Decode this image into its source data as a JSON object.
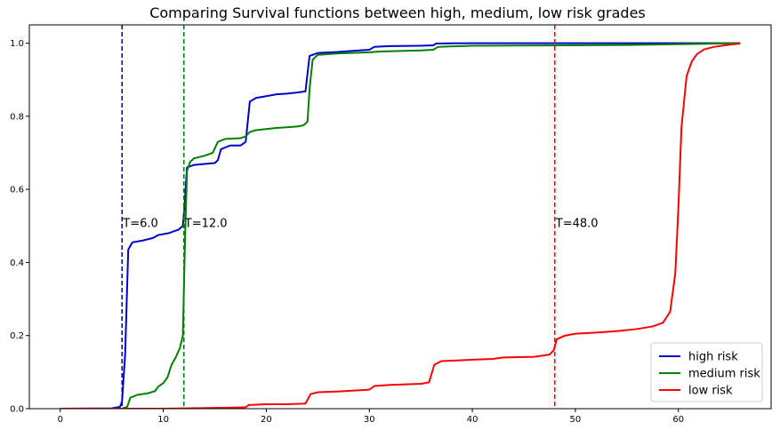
{
  "chart_data": {
    "type": "line",
    "title": "Comparing Survival functions between high, medium, low risk grades",
    "xlabel": "",
    "ylabel": "",
    "xlim": [
      -3,
      69
    ],
    "ylim": [
      0,
      1.05
    ],
    "xticks": [
      0,
      10,
      20,
      30,
      40,
      50,
      60
    ],
    "yticks": [
      0.0,
      0.2,
      0.4,
      0.6,
      0.8,
      1.0
    ],
    "grid": false,
    "legend_position": "lower-right",
    "series": [
      {
        "name": "high risk",
        "color": "#0000cc",
        "points": [
          [
            0,
            0
          ],
          [
            5,
            0.001
          ],
          [
            5.8,
            0.005
          ],
          [
            6.0,
            0.02
          ],
          [
            6.3,
            0.15
          ],
          [
            6.6,
            0.435
          ],
          [
            7,
            0.455
          ],
          [
            8,
            0.46
          ],
          [
            9,
            0.467
          ],
          [
            9.5,
            0.475
          ],
          [
            10.5,
            0.48
          ],
          [
            11,
            0.485
          ],
          [
            11.5,
            0.49
          ],
          [
            11.9,
            0.5
          ],
          [
            12.05,
            0.55
          ],
          [
            12.3,
            0.66
          ],
          [
            13,
            0.667
          ],
          [
            15,
            0.672
          ],
          [
            15.3,
            0.68
          ],
          [
            15.6,
            0.71
          ],
          [
            16.5,
            0.72
          ],
          [
            17.5,
            0.72
          ],
          [
            18,
            0.73
          ],
          [
            18.4,
            0.84
          ],
          [
            19,
            0.85
          ],
          [
            20,
            0.855
          ],
          [
            21,
            0.86
          ],
          [
            22,
            0.862
          ],
          [
            23,
            0.865
          ],
          [
            23.8,
            0.868
          ],
          [
            24.2,
            0.965
          ],
          [
            25,
            0.973
          ],
          [
            27,
            0.976
          ],
          [
            29,
            0.98
          ],
          [
            30,
            0.982
          ],
          [
            30.5,
            0.99
          ],
          [
            32,
            0.992
          ],
          [
            35,
            0.993
          ],
          [
            36.2,
            0.994
          ],
          [
            36.5,
            0.999
          ],
          [
            40,
            1.0
          ],
          [
            60,
            1.0
          ],
          [
            66,
            1.0
          ]
        ]
      },
      {
        "name": "medium risk",
        "color": "#008000",
        "points": [
          [
            0,
            0
          ],
          [
            6,
            0.0
          ],
          [
            6.5,
            0.005
          ],
          [
            6.8,
            0.03
          ],
          [
            7.5,
            0.038
          ],
          [
            8.5,
            0.042
          ],
          [
            9.2,
            0.048
          ],
          [
            9.5,
            0.06
          ],
          [
            10,
            0.07
          ],
          [
            10.4,
            0.085
          ],
          [
            10.8,
            0.12
          ],
          [
            11.2,
            0.14
          ],
          [
            11.6,
            0.165
          ],
          [
            11.9,
            0.2
          ],
          [
            12.1,
            0.45
          ],
          [
            12.3,
            0.65
          ],
          [
            12.6,
            0.675
          ],
          [
            13,
            0.685
          ],
          [
            14,
            0.692
          ],
          [
            14.8,
            0.7
          ],
          [
            15.3,
            0.73
          ],
          [
            16,
            0.738
          ],
          [
            17.5,
            0.74
          ],
          [
            18,
            0.745
          ],
          [
            18.4,
            0.757
          ],
          [
            19,
            0.762
          ],
          [
            20,
            0.765
          ],
          [
            21,
            0.768
          ],
          [
            22,
            0.77
          ],
          [
            23,
            0.772
          ],
          [
            23.6,
            0.775
          ],
          [
            24,
            0.785
          ],
          [
            24.2,
            0.875
          ],
          [
            24.5,
            0.955
          ],
          [
            25,
            0.968
          ],
          [
            27,
            0.972
          ],
          [
            30,
            0.975
          ],
          [
            31,
            0.977
          ],
          [
            35,
            0.98
          ],
          [
            36.2,
            0.982
          ],
          [
            36.7,
            0.99
          ],
          [
            40,
            0.993
          ],
          [
            55,
            0.995
          ],
          [
            60,
            0.997
          ],
          [
            66,
            1.0
          ]
        ]
      },
      {
        "name": "low risk",
        "color": "#ff0000",
        "points": [
          [
            0,
            0
          ],
          [
            10,
            0.0
          ],
          [
            15,
            0.002
          ],
          [
            17,
            0.003
          ],
          [
            18,
            0.004
          ],
          [
            18.3,
            0.01
          ],
          [
            20,
            0.012
          ],
          [
            22,
            0.012
          ],
          [
            23.8,
            0.014
          ],
          [
            24.3,
            0.04
          ],
          [
            25,
            0.045
          ],
          [
            27,
            0.047
          ],
          [
            30,
            0.052
          ],
          [
            30.5,
            0.062
          ],
          [
            32,
            0.065
          ],
          [
            35,
            0.068
          ],
          [
            35.8,
            0.072
          ],
          [
            36.3,
            0.12
          ],
          [
            37,
            0.13
          ],
          [
            40,
            0.134
          ],
          [
            42,
            0.136
          ],
          [
            43,
            0.14
          ],
          [
            46,
            0.142
          ],
          [
            47.5,
            0.148
          ],
          [
            47.9,
            0.16
          ],
          [
            48.2,
            0.19
          ],
          [
            49,
            0.2
          ],
          [
            50,
            0.205
          ],
          [
            52,
            0.208
          ],
          [
            54,
            0.212
          ],
          [
            56,
            0.218
          ],
          [
            57.5,
            0.225
          ],
          [
            58.5,
            0.235
          ],
          [
            59.2,
            0.265
          ],
          [
            59.7,
            0.37
          ],
          [
            60,
            0.55
          ],
          [
            60.3,
            0.77
          ],
          [
            60.8,
            0.91
          ],
          [
            61.3,
            0.95
          ],
          [
            61.8,
            0.97
          ],
          [
            62.5,
            0.983
          ],
          [
            63.5,
            0.99
          ],
          [
            65,
            0.996
          ],
          [
            66,
            0.999
          ]
        ]
      }
    ],
    "vlines": [
      {
        "x": 6.0,
        "color": "#0000cc",
        "label": "T=6.0",
        "label_y": 0.5
      },
      {
        "x": 12.0,
        "color": "#008000",
        "label": "T=12.0",
        "label_y": 0.5
      },
      {
        "x": 48.0,
        "color": "#ff0000",
        "label": "T=48.0",
        "label_y": 0.5
      }
    ]
  }
}
